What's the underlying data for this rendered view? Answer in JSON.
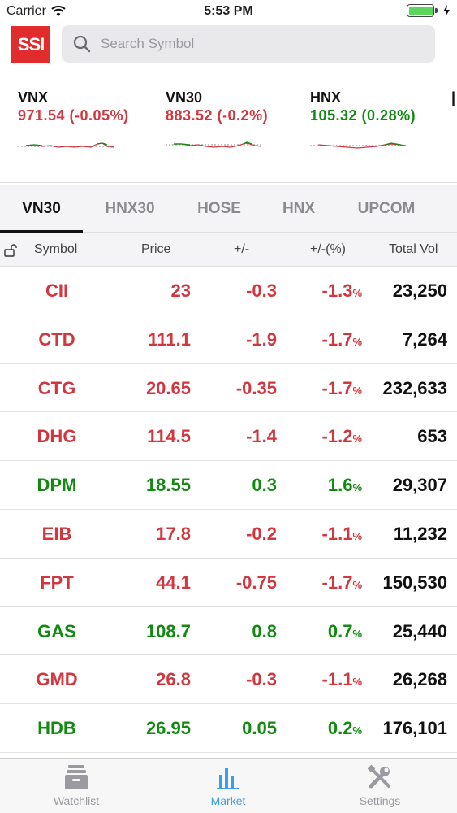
{
  "status_bar": {
    "carrier": "Carrier",
    "time": "5:53 PM"
  },
  "header": {
    "logo_text": "SSI",
    "search_placeholder": "Search Symbol"
  },
  "indices": [
    {
      "name": "VNX",
      "value": "971.54 (-0.05%)",
      "trend": "down"
    },
    {
      "name": "VN30",
      "value": "883.52 (-0.2%)",
      "trend": "down"
    },
    {
      "name": "HNX",
      "value": "105.32 (0.28%)",
      "trend": "up"
    }
  ],
  "tabs": [
    "VN30",
    "HNX30",
    "HOSE",
    "HNX",
    "UPCOM"
  ],
  "active_tab": "VN30",
  "columns": {
    "symbol": "Symbol",
    "price": "Price",
    "change": "+/-",
    "percent": "+/-(%)",
    "volume": "Total Vol"
  },
  "rows": [
    {
      "symbol": "CII",
      "price": "23",
      "change": "-0.3",
      "percent": "-1.3",
      "volume": "23,250",
      "trend": "down"
    },
    {
      "symbol": "CTD",
      "price": "111.1",
      "change": "-1.9",
      "percent": "-1.7",
      "volume": "7,264",
      "trend": "down"
    },
    {
      "symbol": "CTG",
      "price": "20.65",
      "change": "-0.35",
      "percent": "-1.7",
      "volume": "232,633",
      "trend": "down"
    },
    {
      "symbol": "DHG",
      "price": "114.5",
      "change": "-1.4",
      "percent": "-1.2",
      "volume": "653",
      "trend": "down"
    },
    {
      "symbol": "DPM",
      "price": "18.55",
      "change": "0.3",
      "percent": "1.6",
      "volume": "29,307",
      "trend": "up"
    },
    {
      "symbol": "EIB",
      "price": "17.8",
      "change": "-0.2",
      "percent": "-1.1",
      "volume": "11,232",
      "trend": "down"
    },
    {
      "symbol": "FPT",
      "price": "44.1",
      "change": "-0.75",
      "percent": "-1.7",
      "volume": "150,530",
      "trend": "down"
    },
    {
      "symbol": "GAS",
      "price": "108.7",
      "change": "0.8",
      "percent": "0.7",
      "volume": "25,440",
      "trend": "up"
    },
    {
      "symbol": "GMD",
      "price": "26.8",
      "change": "-0.3",
      "percent": "-1.1",
      "volume": "26,268",
      "trend": "down"
    },
    {
      "symbol": "HDB",
      "price": "26.95",
      "change": "0.05",
      "percent": "0.2",
      "volume": "176,101",
      "trend": "up"
    }
  ],
  "percent_suffix": "%",
  "tabbar": {
    "watchlist": "Watchlist",
    "market": "Market",
    "settings": "Settings",
    "active": "Market"
  },
  "colors": {
    "red": "#d0373f",
    "green": "#128a12",
    "accent": "#3d9ee6",
    "logo": "#e02c2c"
  },
  "icons": [
    "wifi-icon",
    "battery-icon",
    "charging-icon",
    "search-icon",
    "lock-icon",
    "watchlist-box-icon",
    "market-bars-icon",
    "settings-tools-icon"
  ]
}
